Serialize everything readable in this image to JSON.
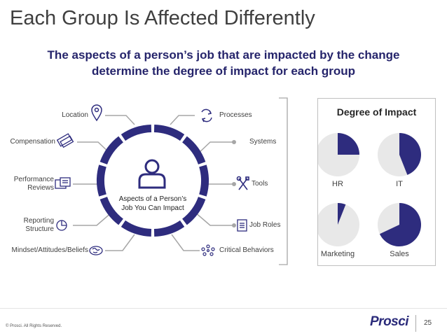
{
  "title": "Each Group Is Affected Differently",
  "subtitle": {
    "line1": "The aspects of a person’s job that are impacted by the change",
    "line2": "determine the degree of impact for each group"
  },
  "center": {
    "line1": "Aspects of a Person’s",
    "line2": "Job You Can Impact"
  },
  "left_items": {
    "location": "Location",
    "compensation": "Compensation",
    "performance_reviews_1": "Performance",
    "performance_reviews_2": "Reviews",
    "reporting_structure_1": "Reporting",
    "reporting_structure_2": "Structure",
    "mindset": "Mindset/Attitudes/Beliefs"
  },
  "right_items": {
    "processes": "Processes",
    "systems": "Systems",
    "tools": "Tools",
    "job_roles": "Job Roles",
    "critical_behaviors": "Critical Behaviors"
  },
  "impact": {
    "title": "Degree of Impact",
    "groups": [
      {
        "label": "HR",
        "fraction": 0.25
      },
      {
        "label": "IT",
        "fraction": 0.44
      },
      {
        "label": "Marketing",
        "fraction": 0.06
      },
      {
        "label": "Sales",
        "fraction": 0.68
      }
    ],
    "fill_color": "#2e2c7e",
    "empty_color": "#e8e8e8"
  },
  "colors": {
    "ring": "#2e2c7e",
    "icon": "#2e2c7e",
    "connector": "#a6a6a6"
  },
  "footer": {
    "copyright": "© Prosci. All Rights Reserved.",
    "brand": "Prosci",
    "page": "25"
  }
}
